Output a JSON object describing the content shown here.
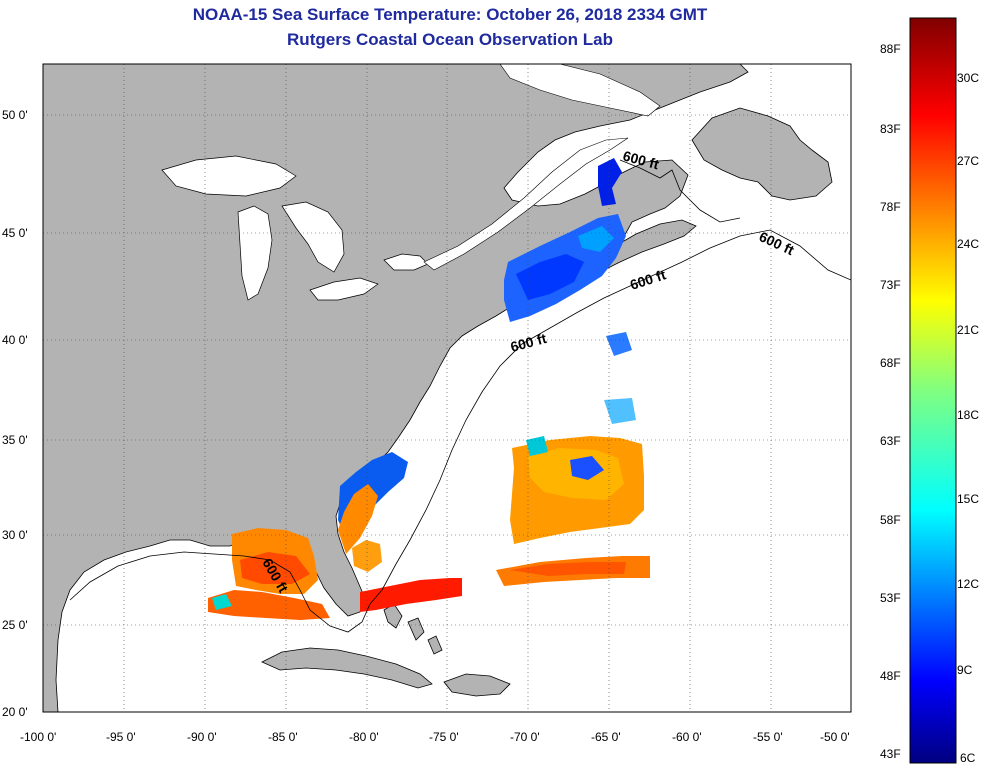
{
  "header": {
    "title": "NOAA-15 Sea Surface Temperature:  October 26, 2018 2334 GMT",
    "subtitle": "Rutgers Coastal Ocean Observation Lab"
  },
  "map": {
    "lon_range": [
      -100,
      -50
    ],
    "lat_range": [
      20,
      52.5
    ],
    "lon_ticks": [
      "-100 0'",
      "-95 0'",
      "-90 0'",
      "-85 0'",
      "-80 0'",
      "-75 0'",
      "-70 0'",
      "-65 0'",
      "-60 0'",
      "-55 0'",
      "-50 0'"
    ],
    "lat_ticks": [
      "20 0'",
      "25 0'",
      "30 0'",
      "35 0'",
      "40 0'",
      "45 0'",
      "50 0'"
    ],
    "land_color": "#b3b3b3",
    "ocean_color": "#ffffff",
    "grid": "dotted",
    "isobath_labels": [
      "600 ft",
      "600 ft",
      "600 ft",
      "600 ft",
      "600 ft"
    ]
  },
  "colorbar": {
    "fahrenheit": [
      "88F",
      "83F",
      "78F",
      "73F",
      "68F",
      "63F",
      "58F",
      "53F",
      "48F",
      "43F"
    ],
    "celsius": [
      "30C",
      "27C",
      "24C",
      "21C",
      "18C",
      "15C",
      "12C",
      "9C",
      "6C"
    ],
    "colormap": "jet",
    "range_c": [
      6,
      31.5
    ]
  }
}
